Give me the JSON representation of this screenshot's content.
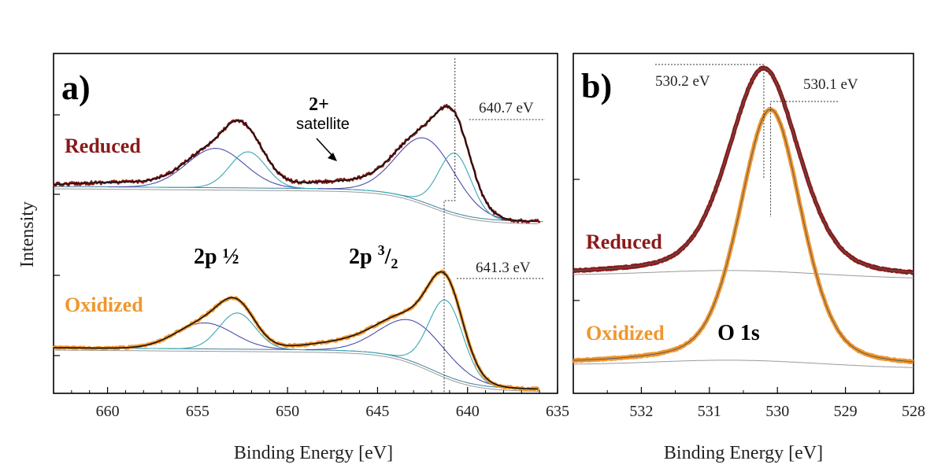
{
  "chart_data": [
    {
      "type": "line",
      "panel_label": "a)",
      "xlabel": "Binding Energy [eV]",
      "ylabel": "Intensity",
      "xlim": [
        663,
        635
      ],
      "x_ticks": [
        660,
        655,
        650,
        645,
        640,
        635
      ],
      "x_tick_labels": [
        "660",
        "655",
        "650",
        "645",
        "640",
        "635"
      ],
      "grid": false,
      "series": [
        {
          "name": "Reduced",
          "color": "#8b1a1a",
          "peak_label": "640.7 eV",
          "peak_x": 640.7
        },
        {
          "name": "Oxidized",
          "color": "#f0962e",
          "peak_label": "641.3 eV",
          "peak_x": 641.3
        }
      ],
      "annotations": [
        {
          "text_line1": "2+",
          "text_line2": "satellite",
          "x": 647.3
        },
        {
          "text_main": "2p ",
          "text_frac": "½",
          "x": 653.5
        },
        {
          "text_main": "2p ",
          "text_sup": "3",
          "text_slash": "/",
          "text_sub": "2",
          "x": 642.0
        }
      ]
    },
    {
      "type": "line",
      "panel_label": "b)",
      "xlabel": "Binding Energy [eV]",
      "xlim": [
        533,
        528
      ],
      "x_ticks": [
        532,
        531,
        530,
        529,
        528
      ],
      "x_tick_labels": [
        "532",
        "531",
        "530",
        "529",
        "528"
      ],
      "grid": false,
      "series": [
        {
          "name": "Reduced",
          "color": "#8b1a1a",
          "peak_label": "530.2 eV",
          "peak_x": 530.2
        },
        {
          "name": "Oxidized",
          "color": "#f0962e",
          "peak_label": "530.1 eV",
          "peak_x": 530.1
        }
      ],
      "annotations": [
        {
          "text": "O 1s",
          "x": 530.6
        }
      ]
    }
  ],
  "colors": {
    "reduced": "#8b1a1a",
    "oxidized": "#f0962e",
    "fit": "#111111",
    "component_a": "#4b4da8",
    "component_b": "#3aa7b3",
    "background": "#9a9a9a"
  }
}
